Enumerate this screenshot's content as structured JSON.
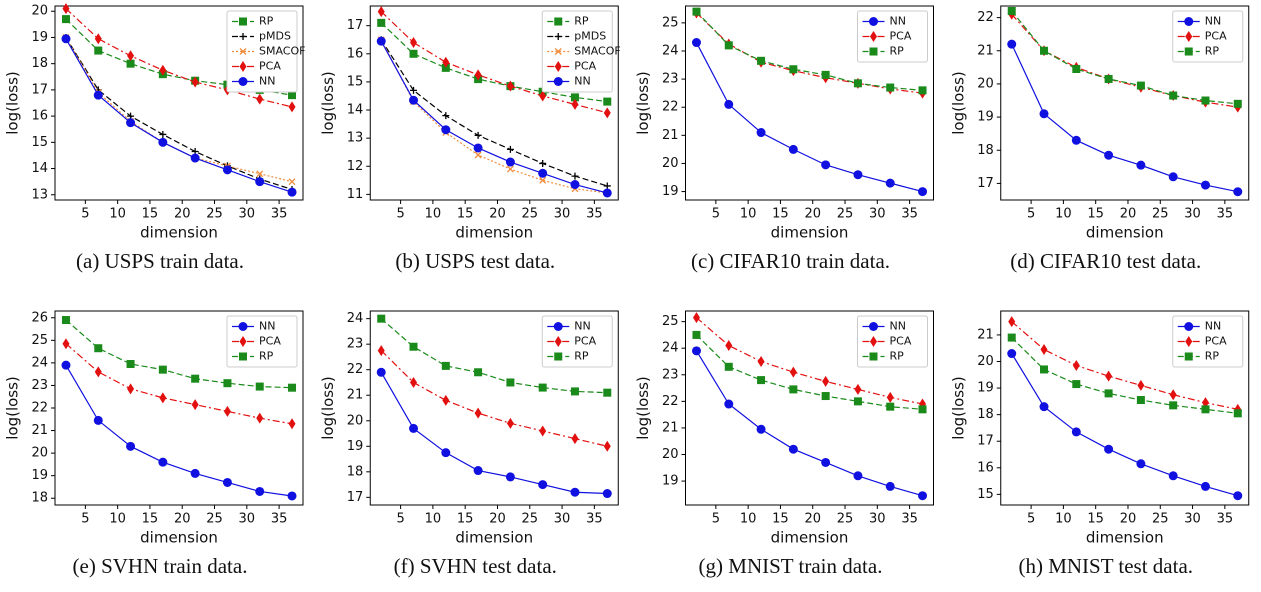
{
  "chart_data": [
    {
      "type": "line",
      "caption": "(a) USPS train data.",
      "xlabel": "dimension",
      "ylabel": "log(loss)",
      "x": [
        2,
        7,
        12,
        17,
        22,
        27,
        32,
        37
      ],
      "xlim": [
        0.3,
        38.7
      ],
      "xticks": [
        5,
        10,
        15,
        20,
        25,
        30,
        35
      ],
      "ylim": [
        12.8,
        20.2
      ],
      "yticks": [
        13,
        14,
        15,
        16,
        17,
        18,
        19,
        20
      ],
      "legend": "upper right",
      "series": [
        {
          "name": "RP",
          "color": "#1a8a1a",
          "marker": "square",
          "dash": "dashed",
          "values": [
            19.7,
            18.5,
            18.0,
            17.6,
            17.35,
            17.2,
            17.0,
            16.8
          ]
        },
        {
          "name": "pMDS",
          "color": "#000000",
          "marker": "plus",
          "dash": "dashed",
          "values": [
            19.0,
            17.0,
            16.0,
            15.3,
            14.65,
            14.1,
            13.6,
            13.2
          ]
        },
        {
          "name": "SMACOF",
          "color": "#f08c3c",
          "marker": "x",
          "dash": "dotted",
          "values": [
            19.0,
            16.9,
            15.8,
            15.0,
            14.4,
            14.1,
            13.8,
            13.5
          ]
        },
        {
          "name": "PCA",
          "color": "#e31010",
          "marker": "diamond",
          "dash": "dashdot",
          "values": [
            20.1,
            18.95,
            18.3,
            17.75,
            17.3,
            17.0,
            16.65,
            16.35
          ]
        },
        {
          "name": "NN",
          "color": "#1010e0",
          "marker": "circle",
          "dash": "solid",
          "values": [
            18.95,
            16.8,
            15.75,
            15.0,
            14.4,
            13.95,
            13.5,
            13.1
          ]
        }
      ]
    },
    {
      "type": "line",
      "caption": "(b) USPS test data.",
      "xlabel": "dimension",
      "ylabel": "log(loss)",
      "x": [
        2,
        7,
        12,
        17,
        22,
        27,
        32,
        37
      ],
      "xlim": [
        0.3,
        38.7
      ],
      "xticks": [
        5,
        10,
        15,
        20,
        25,
        30,
        35
      ],
      "ylim": [
        10.8,
        17.7
      ],
      "yticks": [
        11,
        12,
        13,
        14,
        15,
        16,
        17
      ],
      "legend": "upper right",
      "series": [
        {
          "name": "RP",
          "color": "#1a8a1a",
          "marker": "square",
          "dash": "dashed",
          "values": [
            17.1,
            16.0,
            15.5,
            15.1,
            14.85,
            14.65,
            14.45,
            14.3
          ]
        },
        {
          "name": "pMDS",
          "color": "#000000",
          "marker": "plus",
          "dash": "dashed",
          "values": [
            16.5,
            14.7,
            13.8,
            13.1,
            12.6,
            12.1,
            11.65,
            11.3
          ]
        },
        {
          "name": "SMACOF",
          "color": "#f08c3c",
          "marker": "x",
          "dash": "dotted",
          "values": [
            16.5,
            14.3,
            13.2,
            12.4,
            11.9,
            11.5,
            11.2,
            11.05
          ]
        },
        {
          "name": "PCA",
          "color": "#e31010",
          "marker": "diamond",
          "dash": "dashdot",
          "values": [
            17.5,
            16.4,
            15.7,
            15.25,
            14.85,
            14.5,
            14.2,
            13.9
          ]
        },
        {
          "name": "NN",
          "color": "#1010e0",
          "marker": "circle",
          "dash": "solid",
          "values": [
            16.45,
            14.35,
            13.3,
            12.65,
            12.15,
            11.75,
            11.35,
            11.05
          ]
        }
      ]
    },
    {
      "type": "line",
      "caption": "(c) CIFAR10 train data.",
      "xlabel": "dimension",
      "ylabel": "log(loss)",
      "x": [
        2,
        7,
        12,
        17,
        22,
        27,
        32,
        37
      ],
      "xlim": [
        0.3,
        38.7
      ],
      "xticks": [
        5,
        10,
        15,
        20,
        25,
        30,
        35
      ],
      "ylim": [
        18.7,
        25.6
      ],
      "yticks": [
        19,
        20,
        21,
        22,
        23,
        24,
        25
      ],
      "legend": "upper right",
      "series": [
        {
          "name": "NN",
          "color": "#1010e0",
          "marker": "circle",
          "dash": "solid",
          "values": [
            24.3,
            22.1,
            21.1,
            20.5,
            19.95,
            19.6,
            19.3,
            19.0
          ]
        },
        {
          "name": "PCA",
          "color": "#e31010",
          "marker": "diamond",
          "dash": "dashdot",
          "values": [
            25.35,
            24.25,
            23.6,
            23.3,
            23.05,
            22.85,
            22.65,
            22.5
          ]
        },
        {
          "name": "RP",
          "color": "#1a8a1a",
          "marker": "square",
          "dash": "dashed",
          "values": [
            25.4,
            24.2,
            23.65,
            23.35,
            23.15,
            22.85,
            22.7,
            22.6
          ]
        }
      ]
    },
    {
      "type": "line",
      "caption": "(d) CIFAR10 test data.",
      "xlabel": "dimension",
      "ylabel": "log(loss)",
      "x": [
        2,
        7,
        12,
        17,
        22,
        27,
        32,
        37
      ],
      "xlim": [
        0.3,
        38.7
      ],
      "xticks": [
        5,
        10,
        15,
        20,
        25,
        30,
        35
      ],
      "ylim": [
        16.5,
        22.35
      ],
      "yticks": [
        17,
        18,
        19,
        20,
        21,
        22
      ],
      "legend": "upper right",
      "series": [
        {
          "name": "NN",
          "color": "#1010e0",
          "marker": "circle",
          "dash": "solid",
          "values": [
            21.2,
            19.1,
            18.3,
            17.85,
            17.55,
            17.2,
            16.95,
            16.75
          ]
        },
        {
          "name": "PCA",
          "color": "#e31010",
          "marker": "diamond",
          "dash": "dashdot",
          "values": [
            22.1,
            21.0,
            20.5,
            20.15,
            19.9,
            19.65,
            19.45,
            19.3
          ]
        },
        {
          "name": "RP",
          "color": "#1a8a1a",
          "marker": "square",
          "dash": "dashed",
          "values": [
            22.2,
            21.0,
            20.45,
            20.15,
            19.95,
            19.65,
            19.5,
            19.4
          ]
        }
      ]
    },
    {
      "type": "line",
      "caption": "(e) SVHN train data.",
      "xlabel": "dimension",
      "ylabel": "log(loss)",
      "x": [
        2,
        7,
        12,
        17,
        22,
        27,
        32,
        37
      ],
      "xlim": [
        0.3,
        38.7
      ],
      "xticks": [
        5,
        10,
        15,
        20,
        25,
        30,
        35
      ],
      "ylim": [
        17.7,
        26.3
      ],
      "yticks": [
        18,
        19,
        20,
        21,
        22,
        23,
        24,
        25,
        26
      ],
      "legend": "upper right",
      "series": [
        {
          "name": "NN",
          "color": "#1010e0",
          "marker": "circle",
          "dash": "solid",
          "values": [
            23.9,
            21.45,
            20.3,
            19.6,
            19.1,
            18.7,
            18.3,
            18.1
          ]
        },
        {
          "name": "PCA",
          "color": "#e31010",
          "marker": "diamond",
          "dash": "dashdot",
          "values": [
            24.85,
            23.6,
            22.85,
            22.45,
            22.15,
            21.85,
            21.55,
            21.3
          ]
        },
        {
          "name": "RP",
          "color": "#1a8a1a",
          "marker": "square",
          "dash": "dashed",
          "values": [
            25.9,
            24.65,
            23.95,
            23.7,
            23.3,
            23.1,
            22.95,
            22.9
          ]
        }
      ]
    },
    {
      "type": "line",
      "caption": "(f) SVHN test data.",
      "xlabel": "dimension",
      "ylabel": "log(loss)",
      "x": [
        2,
        7,
        12,
        17,
        22,
        27,
        32,
        37
      ],
      "xlim": [
        0.3,
        38.7
      ],
      "xticks": [
        5,
        10,
        15,
        20,
        25,
        30,
        35
      ],
      "ylim": [
        16.7,
        24.3
      ],
      "yticks": [
        17,
        18,
        19,
        20,
        21,
        22,
        23,
        24
      ],
      "legend": "upper right",
      "series": [
        {
          "name": "NN",
          "color": "#1010e0",
          "marker": "circle",
          "dash": "solid",
          "values": [
            21.9,
            19.7,
            18.75,
            18.05,
            17.8,
            17.5,
            17.2,
            17.15
          ]
        },
        {
          "name": "PCA",
          "color": "#e31010",
          "marker": "diamond",
          "dash": "dashdot",
          "values": [
            22.75,
            21.5,
            20.8,
            20.3,
            19.9,
            19.6,
            19.3,
            19.0
          ]
        },
        {
          "name": "RP",
          "color": "#1a8a1a",
          "marker": "square",
          "dash": "dashed",
          "values": [
            24.0,
            22.9,
            22.15,
            21.9,
            21.5,
            21.3,
            21.15,
            21.1
          ]
        }
      ]
    },
    {
      "type": "line",
      "caption": "(g) MNIST train data.",
      "xlabel": "dimension",
      "ylabel": "log(loss)",
      "x": [
        2,
        7,
        12,
        17,
        22,
        27,
        32,
        37
      ],
      "xlim": [
        0.3,
        38.7
      ],
      "xticks": [
        5,
        10,
        15,
        20,
        25,
        30,
        35
      ],
      "ylim": [
        18.1,
        25.4
      ],
      "yticks": [
        19,
        20,
        21,
        22,
        23,
        24,
        25
      ],
      "legend": "upper right",
      "series": [
        {
          "name": "NN",
          "color": "#1010e0",
          "marker": "circle",
          "dash": "solid",
          "values": [
            23.9,
            21.9,
            20.95,
            20.2,
            19.7,
            19.2,
            18.8,
            18.45
          ]
        },
        {
          "name": "PCA",
          "color": "#e31010",
          "marker": "diamond",
          "dash": "dashdot",
          "values": [
            25.15,
            24.1,
            23.5,
            23.1,
            22.75,
            22.45,
            22.15,
            21.9
          ]
        },
        {
          "name": "RP",
          "color": "#1a8a1a",
          "marker": "square",
          "dash": "dashed",
          "values": [
            24.5,
            23.3,
            22.8,
            22.45,
            22.2,
            22.0,
            21.8,
            21.7
          ]
        }
      ]
    },
    {
      "type": "line",
      "caption": "(h) MNIST test data.",
      "xlabel": "dimension",
      "ylabel": "log(loss)",
      "x": [
        2,
        7,
        12,
        17,
        22,
        27,
        32,
        37
      ],
      "xlim": [
        0.3,
        38.7
      ],
      "xticks": [
        5,
        10,
        15,
        20,
        25,
        30,
        35
      ],
      "ylim": [
        14.6,
        21.9
      ],
      "yticks": [
        15,
        16,
        17,
        18,
        19,
        20,
        21
      ],
      "legend": "upper right",
      "series": [
        {
          "name": "NN",
          "color": "#1010e0",
          "marker": "circle",
          "dash": "solid",
          "values": [
            20.3,
            18.3,
            17.35,
            16.7,
            16.15,
            15.7,
            15.3,
            14.95
          ]
        },
        {
          "name": "PCA",
          "color": "#e31010",
          "marker": "diamond",
          "dash": "dashdot",
          "values": [
            21.5,
            20.45,
            19.85,
            19.45,
            19.1,
            18.75,
            18.45,
            18.2
          ]
        },
        {
          "name": "RP",
          "color": "#1a8a1a",
          "marker": "square",
          "dash": "dashed",
          "values": [
            20.9,
            19.7,
            19.15,
            18.8,
            18.55,
            18.35,
            18.2,
            18.05
          ]
        }
      ]
    }
  ]
}
